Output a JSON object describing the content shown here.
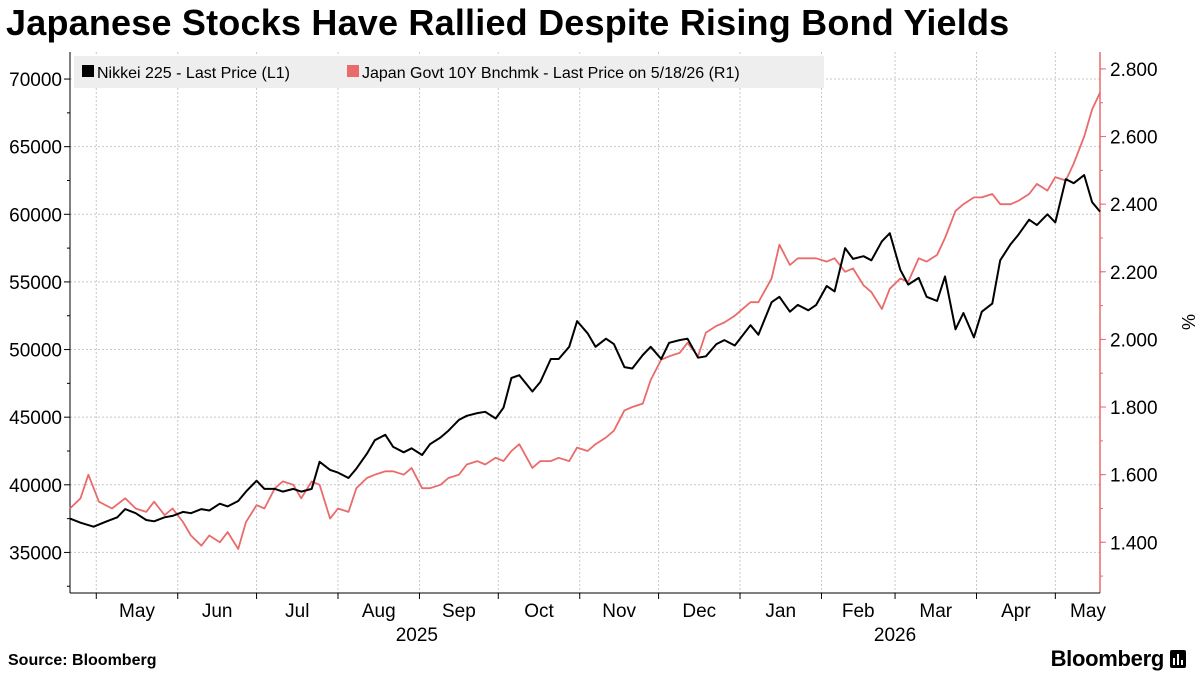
{
  "title": "Japanese Stocks Have Rallied Despite Rising Bond Yields",
  "source": "Source: Bloomberg",
  "brand": "Bloomberg",
  "colors": {
    "nikkei": "#000000",
    "jgb": "#ea6b6b",
    "grid": "#c8c8c8",
    "legend_bg": "#eeeeee"
  },
  "chart_data": {
    "type": "line",
    "x_start": "2025-04-21",
    "x_end": "2026-05-18",
    "x_ticks": [
      {
        "label": "May",
        "date": "2025-05-01"
      },
      {
        "label": "Jun",
        "date": "2025-06-01"
      },
      {
        "label": "Jul",
        "date": "2025-07-01"
      },
      {
        "label": "Aug",
        "date": "2025-08-01"
      },
      {
        "label": "Sep",
        "date": "2025-09-01"
      },
      {
        "label": "Oct",
        "date": "2025-10-01"
      },
      {
        "label": "Nov",
        "date": "2025-11-01"
      },
      {
        "label": "Dec",
        "date": "2025-12-01"
      },
      {
        "label": "Jan",
        "date": "2026-01-01"
      },
      {
        "label": "Feb",
        "date": "2026-02-01"
      },
      {
        "label": "Mar",
        "date": "2026-03-01"
      },
      {
        "label": "Apr",
        "date": "2026-04-01"
      },
      {
        "label": "May",
        "date": "2026-05-01"
      }
    ],
    "year_labels": [
      {
        "label": "2025",
        "date": "2025-08-31"
      },
      {
        "label": "2026",
        "date": "2026-03-01"
      }
    ],
    "y_left": {
      "min": 32000,
      "max": 72000,
      "ticks": [
        35000,
        40000,
        45000,
        50000,
        55000,
        60000,
        65000,
        70000
      ],
      "tick_labels": [
        "35000",
        "40000",
        "45000",
        "50000",
        "55000",
        "60000",
        "65000",
        "70000"
      ]
    },
    "y_right": {
      "min": 1.25,
      "max": 2.85,
      "ticks": [
        1.4,
        1.6,
        1.8,
        2.0,
        2.2,
        2.4,
        2.6,
        2.8
      ],
      "tick_labels": [
        "1.400",
        "1.600",
        "1.800",
        "2.000",
        "2.200",
        "2.400",
        "2.600",
        "2.800"
      ],
      "unit": "%"
    },
    "grid": true,
    "legend_position": "top-left",
    "series": [
      {
        "name": "Nikkei 225 - Last Price (L1)",
        "axis": "left",
        "points": [
          [
            "2025-04-21",
            37500
          ],
          [
            "2025-04-25",
            37200
          ],
          [
            "2025-04-30",
            36900
          ],
          [
            "2025-05-05",
            37300
          ],
          [
            "2025-05-09",
            37600
          ],
          [
            "2025-05-12",
            38200
          ],
          [
            "2025-05-16",
            37900
          ],
          [
            "2025-05-20",
            37400
          ],
          [
            "2025-05-23",
            37300
          ],
          [
            "2025-05-27",
            37600
          ],
          [
            "2025-05-30",
            37700
          ],
          [
            "2025-06-03",
            38000
          ],
          [
            "2025-06-06",
            37900
          ],
          [
            "2025-06-10",
            38200
          ],
          [
            "2025-06-13",
            38100
          ],
          [
            "2025-06-17",
            38600
          ],
          [
            "2025-06-20",
            38400
          ],
          [
            "2025-06-24",
            38800
          ],
          [
            "2025-06-27",
            39500
          ],
          [
            "2025-07-01",
            40300
          ],
          [
            "2025-07-04",
            39700
          ],
          [
            "2025-07-08",
            39700
          ],
          [
            "2025-07-11",
            39500
          ],
          [
            "2025-07-15",
            39700
          ],
          [
            "2025-07-18",
            39500
          ],
          [
            "2025-07-22",
            39700
          ],
          [
            "2025-07-25",
            41700
          ],
          [
            "2025-07-29",
            41100
          ],
          [
            "2025-08-01",
            40900
          ],
          [
            "2025-08-05",
            40500
          ],
          [
            "2025-08-08",
            41200
          ],
          [
            "2025-08-12",
            42300
          ],
          [
            "2025-08-15",
            43300
          ],
          [
            "2025-08-19",
            43700
          ],
          [
            "2025-08-22",
            42800
          ],
          [
            "2025-08-26",
            42400
          ],
          [
            "2025-08-29",
            42700
          ],
          [
            "2025-09-02",
            42200
          ],
          [
            "2025-09-05",
            43000
          ],
          [
            "2025-09-09",
            43500
          ],
          [
            "2025-09-12",
            44000
          ],
          [
            "2025-09-16",
            44800
          ],
          [
            "2025-09-19",
            45100
          ],
          [
            "2025-09-23",
            45300
          ],
          [
            "2025-09-26",
            45400
          ],
          [
            "2025-09-30",
            44900
          ],
          [
            "2025-10-03",
            45700
          ],
          [
            "2025-10-06",
            47900
          ],
          [
            "2025-10-09",
            48100
          ],
          [
            "2025-10-14",
            46900
          ],
          [
            "2025-10-17",
            47600
          ],
          [
            "2025-10-21",
            49300
          ],
          [
            "2025-10-24",
            49300
          ],
          [
            "2025-10-28",
            50200
          ],
          [
            "2025-10-31",
            52100
          ],
          [
            "2025-11-04",
            51200
          ],
          [
            "2025-11-07",
            50200
          ],
          [
            "2025-11-11",
            50800
          ],
          [
            "2025-11-14",
            50400
          ],
          [
            "2025-11-18",
            48700
          ],
          [
            "2025-11-21",
            48600
          ],
          [
            "2025-11-25",
            49600
          ],
          [
            "2025-11-28",
            50200
          ],
          [
            "2025-12-02",
            49300
          ],
          [
            "2025-12-05",
            50500
          ],
          [
            "2025-12-09",
            50700
          ],
          [
            "2025-12-12",
            50800
          ],
          [
            "2025-12-16",
            49400
          ],
          [
            "2025-12-19",
            49500
          ],
          [
            "2025-12-23",
            50400
          ],
          [
            "2025-12-26",
            50700
          ],
          [
            "2025-12-30",
            50300
          ],
          [
            "2026-01-05",
            51800
          ],
          [
            "2026-01-08",
            51100
          ],
          [
            "2026-01-13",
            53500
          ],
          [
            "2026-01-16",
            53900
          ],
          [
            "2026-01-20",
            52800
          ],
          [
            "2026-01-23",
            53300
          ],
          [
            "2026-01-27",
            52900
          ],
          [
            "2026-01-30",
            53300
          ],
          [
            "2026-02-03",
            54700
          ],
          [
            "2026-02-06",
            54300
          ],
          [
            "2026-02-10",
            57500
          ],
          [
            "2026-02-13",
            56700
          ],
          [
            "2026-02-17",
            56900
          ],
          [
            "2026-02-20",
            56600
          ],
          [
            "2026-02-24",
            58000
          ],
          [
            "2026-02-27",
            58600
          ],
          [
            "2026-03-03",
            55900
          ],
          [
            "2026-03-06",
            54800
          ],
          [
            "2026-03-10",
            55300
          ],
          [
            "2026-03-13",
            53900
          ],
          [
            "2026-03-17",
            53600
          ],
          [
            "2026-03-20",
            55400
          ],
          [
            "2026-03-24",
            51500
          ],
          [
            "2026-03-27",
            52700
          ],
          [
            "2026-03-31",
            50900
          ],
          [
            "2026-04-03",
            52800
          ],
          [
            "2026-04-07",
            53400
          ],
          [
            "2026-04-10",
            56600
          ],
          [
            "2026-04-14",
            57800
          ],
          [
            "2026-04-17",
            58500
          ],
          [
            "2026-04-21",
            59600
          ],
          [
            "2026-04-24",
            59200
          ],
          [
            "2026-04-28",
            60000
          ],
          [
            "2026-05-01",
            59400
          ],
          [
            "2026-05-05",
            62600
          ],
          [
            "2026-05-08",
            62300
          ],
          [
            "2026-05-12",
            62900
          ],
          [
            "2026-05-15",
            60900
          ],
          [
            "2026-05-18",
            60200
          ]
        ]
      },
      {
        "name": "Japan Govt 10Y Bnchmk - Last Price on 5/18/26 (R1)",
        "axis": "right",
        "points": [
          [
            "2025-04-21",
            1.5
          ],
          [
            "2025-04-25",
            1.53
          ],
          [
            "2025-04-28",
            1.6
          ],
          [
            "2025-05-02",
            1.52
          ],
          [
            "2025-05-07",
            1.5
          ],
          [
            "2025-05-12",
            1.53
          ],
          [
            "2025-05-16",
            1.5
          ],
          [
            "2025-05-20",
            1.49
          ],
          [
            "2025-05-23",
            1.52
          ],
          [
            "2025-05-27",
            1.48
          ],
          [
            "2025-05-30",
            1.5
          ],
          [
            "2025-06-03",
            1.46
          ],
          [
            "2025-06-06",
            1.42
          ],
          [
            "2025-06-10",
            1.39
          ],
          [
            "2025-06-13",
            1.42
          ],
          [
            "2025-06-17",
            1.4
          ],
          [
            "2025-06-20",
            1.43
          ],
          [
            "2025-06-24",
            1.38
          ],
          [
            "2025-06-27",
            1.46
          ],
          [
            "2025-07-01",
            1.51
          ],
          [
            "2025-07-04",
            1.5
          ],
          [
            "2025-07-08",
            1.56
          ],
          [
            "2025-07-11",
            1.58
          ],
          [
            "2025-07-15",
            1.57
          ],
          [
            "2025-07-18",
            1.53
          ],
          [
            "2025-07-22",
            1.58
          ],
          [
            "2025-07-25",
            1.57
          ],
          [
            "2025-07-29",
            1.47
          ],
          [
            "2025-08-01",
            1.5
          ],
          [
            "2025-08-05",
            1.49
          ],
          [
            "2025-08-08",
            1.56
          ],
          [
            "2025-08-12",
            1.59
          ],
          [
            "2025-08-15",
            1.6
          ],
          [
            "2025-08-19",
            1.61
          ],
          [
            "2025-08-22",
            1.61
          ],
          [
            "2025-08-26",
            1.6
          ],
          [
            "2025-08-29",
            1.62
          ],
          [
            "2025-09-02",
            1.56
          ],
          [
            "2025-09-05",
            1.56
          ],
          [
            "2025-09-09",
            1.57
          ],
          [
            "2025-09-12",
            1.59
          ],
          [
            "2025-09-16",
            1.6
          ],
          [
            "2025-09-19",
            1.63
          ],
          [
            "2025-09-23",
            1.64
          ],
          [
            "2025-09-26",
            1.63
          ],
          [
            "2025-09-30",
            1.65
          ],
          [
            "2025-10-03",
            1.64
          ],
          [
            "2025-10-06",
            1.67
          ],
          [
            "2025-10-09",
            1.69
          ],
          [
            "2025-10-14",
            1.62
          ],
          [
            "2025-10-17",
            1.64
          ],
          [
            "2025-10-21",
            1.64
          ],
          [
            "2025-10-24",
            1.65
          ],
          [
            "2025-10-28",
            1.64
          ],
          [
            "2025-10-31",
            1.68
          ],
          [
            "2025-11-04",
            1.67
          ],
          [
            "2025-11-07",
            1.69
          ],
          [
            "2025-11-11",
            1.71
          ],
          [
            "2025-11-14",
            1.73
          ],
          [
            "2025-11-18",
            1.79
          ],
          [
            "2025-11-21",
            1.8
          ],
          [
            "2025-11-25",
            1.81
          ],
          [
            "2025-11-28",
            1.88
          ],
          [
            "2025-12-02",
            1.94
          ],
          [
            "2025-12-05",
            1.95
          ],
          [
            "2025-12-09",
            1.96
          ],
          [
            "2025-12-12",
            1.99
          ],
          [
            "2025-12-16",
            1.95
          ],
          [
            "2025-12-19",
            2.02
          ],
          [
            "2025-12-23",
            2.04
          ],
          [
            "2025-12-26",
            2.05
          ],
          [
            "2025-12-30",
            2.07
          ],
          [
            "2026-01-05",
            2.11
          ],
          [
            "2026-01-08",
            2.11
          ],
          [
            "2026-01-13",
            2.18
          ],
          [
            "2026-01-16",
            2.28
          ],
          [
            "2026-01-20",
            2.22
          ],
          [
            "2026-01-23",
            2.24
          ],
          [
            "2026-01-27",
            2.24
          ],
          [
            "2026-01-30",
            2.24
          ],
          [
            "2026-02-03",
            2.23
          ],
          [
            "2026-02-06",
            2.24
          ],
          [
            "2026-02-10",
            2.2
          ],
          [
            "2026-02-13",
            2.21
          ],
          [
            "2026-02-17",
            2.16
          ],
          [
            "2026-02-20",
            2.14
          ],
          [
            "2026-02-24",
            2.09
          ],
          [
            "2026-02-27",
            2.15
          ],
          [
            "2026-03-03",
            2.18
          ],
          [
            "2026-03-06",
            2.17
          ],
          [
            "2026-03-10",
            2.24
          ],
          [
            "2026-03-13",
            2.23
          ],
          [
            "2026-03-17",
            2.25
          ],
          [
            "2026-03-20",
            2.3
          ],
          [
            "2026-03-24",
            2.38
          ],
          [
            "2026-03-27",
            2.4
          ],
          [
            "2026-03-31",
            2.42
          ],
          [
            "2026-04-03",
            2.42
          ],
          [
            "2026-04-07",
            2.43
          ],
          [
            "2026-04-10",
            2.4
          ],
          [
            "2026-04-14",
            2.4
          ],
          [
            "2026-04-17",
            2.41
          ],
          [
            "2026-04-21",
            2.43
          ],
          [
            "2026-04-24",
            2.46
          ],
          [
            "2026-04-28",
            2.44
          ],
          [
            "2026-05-01",
            2.48
          ],
          [
            "2026-05-05",
            2.47
          ],
          [
            "2026-05-08",
            2.52
          ],
          [
            "2026-05-12",
            2.6
          ],
          [
            "2026-05-15",
            2.68
          ],
          [
            "2026-05-18",
            2.73
          ]
        ]
      }
    ]
  }
}
